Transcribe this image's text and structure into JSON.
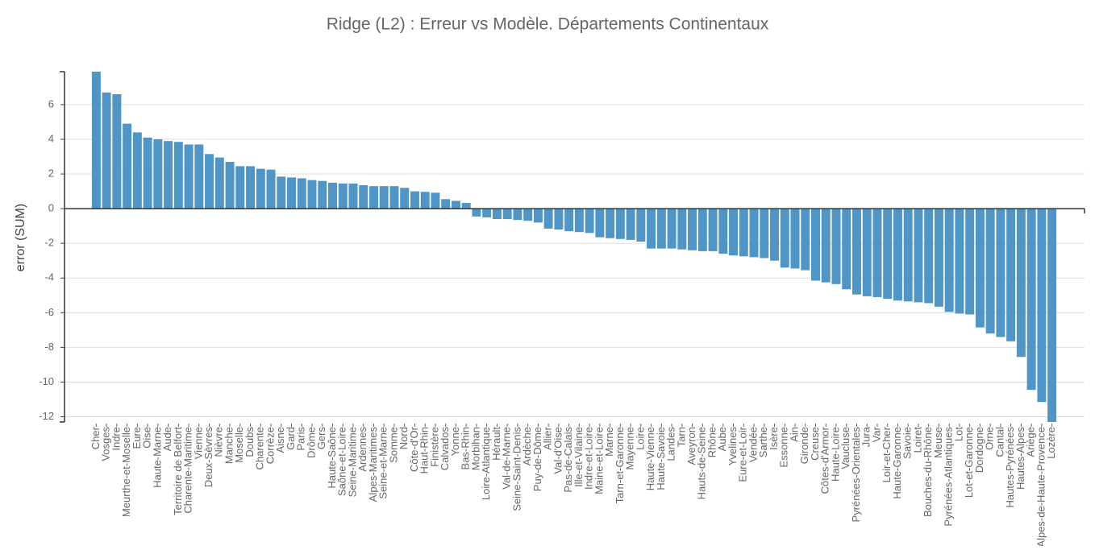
{
  "chart_data": {
    "type": "bar",
    "title": "Ridge (L2)  : Erreur vs Modèle. Départements Continentaux",
    "y_label": "error (SUM)",
    "categories": [
      "Cher",
      "Vosges",
      "Indre",
      "Meurthe-et-Moselle",
      "Eure",
      "Oise",
      "Haute-Marne",
      "Aude",
      "Territoire de Belfort",
      "Charente-Maritime",
      "Vienne",
      "Deux-Sèvres",
      "Nièvre",
      "Manche",
      "Moselle",
      "Doubs",
      "Charente",
      "Corrèze",
      "Aisne",
      "Gard",
      "Paris",
      "Drôme",
      "Gers",
      "Haute-Saône",
      "Saône-et-Loire",
      "Seine-Maritime",
      "Ardennes",
      "Alpes-Maritimes",
      "Seine-et-Marne",
      "Somme",
      "Nord",
      "Côte-d'Or",
      "Haut-Rhin",
      "Finistère",
      "Calvados",
      "Yonne",
      "Bas-Rhin",
      "Morbihan",
      "Loire-Atlantique",
      "Hérault",
      "Val-de-Marne",
      "Seine-Saint-Denis",
      "Ardèche",
      "Puy-de-Dôme",
      "Allier",
      "Val-d'Oise",
      "Pas-de-Calais",
      "Ille-et-Vilaine",
      "Indre-et-Loire",
      "Maine-et-Loire",
      "Marne",
      "Tarn-et-Garonne",
      "Mayenne",
      "Loire",
      "Haute-Vienne",
      "Haute-Savoie",
      "Landes",
      "Tarn",
      "Aveyron",
      "Hauts-de-Seine",
      "Rhône",
      "Aube",
      "Yvelines",
      "Eure-et-Loir",
      "Vendée",
      "Sarthe",
      "Isère",
      "Essonne",
      "Ain",
      "Gironde",
      "Creuse",
      "Côtes-d'Armor",
      "Haute-Loire",
      "Vaucluse",
      "Pyrénées-Orientales",
      "Jura",
      "Var",
      "Loir-et-Cher",
      "Haute-Garonne",
      "Savoie",
      "Loiret",
      "Bouches-du-Rhône",
      "Meuse",
      "Pyrénées-Atlantiques",
      "Lot",
      "Lot-et-Garonne",
      "Dordogne",
      "Orne",
      "Cantal",
      "Hautes-Pyrénées",
      "Hautes-Alpes",
      "Ariège",
      "Alpes-de-Haute-Provence",
      "Lozère"
    ],
    "values": [
      7.9,
      6.7,
      6.6,
      4.9,
      4.4,
      4.1,
      4.0,
      3.9,
      3.85,
      3.7,
      3.7,
      3.15,
      2.95,
      2.7,
      2.45,
      2.45,
      2.3,
      2.25,
      1.85,
      1.8,
      1.75,
      1.65,
      1.6,
      1.5,
      1.45,
      1.45,
      1.35,
      1.3,
      1.3,
      1.3,
      1.2,
      1.0,
      0.97,
      0.92,
      0.55,
      0.45,
      0.33,
      -0.45,
      -0.5,
      -0.6,
      -0.6,
      -0.65,
      -0.7,
      -0.8,
      -1.15,
      -1.2,
      -1.3,
      -1.35,
      -1.4,
      -1.65,
      -1.7,
      -1.75,
      -1.8,
      -1.9,
      -2.3,
      -2.3,
      -2.3,
      -2.35,
      -2.4,
      -2.45,
      -2.45,
      -2.6,
      -2.7,
      -2.75,
      -2.8,
      -2.85,
      -3.0,
      -3.4,
      -3.45,
      -3.55,
      -4.15,
      -4.25,
      -4.35,
      -4.65,
      -4.95,
      -5.05,
      -5.1,
      -5.2,
      -5.3,
      -5.35,
      -5.4,
      -5.45,
      -5.65,
      -5.95,
      -6.05,
      -6.1,
      -6.85,
      -7.2,
      -7.4,
      -7.65,
      -8.55,
      -10.45,
      -11.15,
      -12.3
    ],
    "color": "#4f96c6",
    "ylim": [
      -12.3,
      7.9
    ],
    "yticks": [
      -12,
      -10,
      -8,
      -6,
      -4,
      -2,
      0,
      2,
      4,
      6
    ],
    "grid": true
  }
}
